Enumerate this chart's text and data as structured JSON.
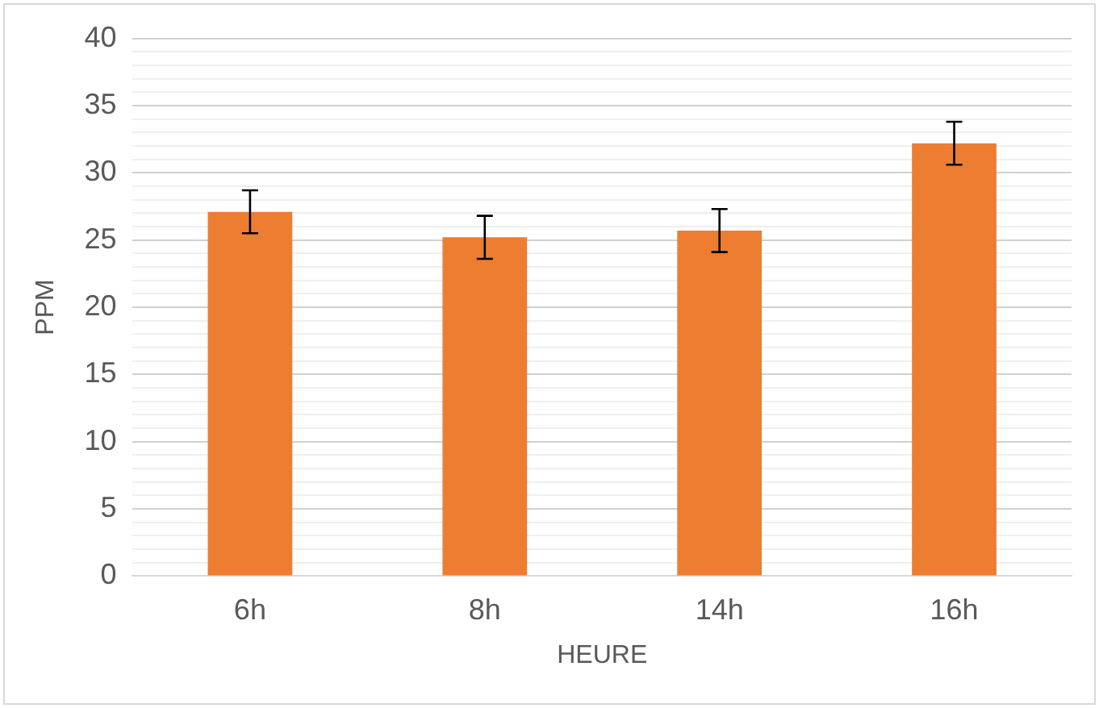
{
  "chart_data": {
    "type": "bar",
    "xlabel": "HEURE",
    "ylabel": "PPM",
    "categories": [
      "6h",
      "8h",
      "14h",
      "16h"
    ],
    "values": [
      27.1,
      25.2,
      25.7,
      32.2
    ],
    "errors": [
      1.6,
      1.6,
      1.6,
      1.6
    ],
    "color": "#ed7d31",
    "ylim": [
      0,
      40
    ],
    "yticks": [
      0,
      {
        "value": 1,
        "label": null
      },
      {
        "value": 2,
        "label": null
      },
      {
        "value": 3,
        "label": null
      },
      {
        "value": 4,
        "label": null
      },
      5,
      {
        "value": 6,
        "label": null
      },
      {
        "value": 7,
        "label": null
      },
      {
        "value": 8,
        "label": null
      },
      {
        "value": 9,
        "label": null
      },
      10,
      {
        "value": 11,
        "label": null
      },
      {
        "value": 12,
        "label": null
      },
      {
        "value": 13,
        "label": null
      },
      {
        "value": 14,
        "label": null
      },
      15,
      {
        "value": 16,
        "label": null
      },
      {
        "value": 17,
        "label": null
      },
      {
        "value": 18,
        "label": null
      },
      {
        "value": 19,
        "label": null
      },
      20,
      {
        "value": 21,
        "label": null
      },
      {
        "value": 22,
        "label": null
      },
      {
        "value": 23,
        "label": null
      },
      {
        "value": 24,
        "label": null
      },
      25,
      {
        "value": 26,
        "label": null
      },
      {
        "value": 27,
        "label": null
      },
      {
        "value": 28,
        "label": null
      },
      {
        "value": 29,
        "label": null
      },
      30,
      {
        "value": 31,
        "label": null
      },
      {
        "value": 32,
        "label": null
      },
      {
        "value": 33,
        "label": null
      },
      {
        "value": 34,
        "label": null
      },
      35,
      {
        "value": 36,
        "label": null
      },
      {
        "value": 37,
        "label": null
      },
      {
        "value": 38,
        "label": null
      },
      {
        "value": 39,
        "label": null
      },
      40
    ],
    "grid": "y",
    "legend": false
  }
}
